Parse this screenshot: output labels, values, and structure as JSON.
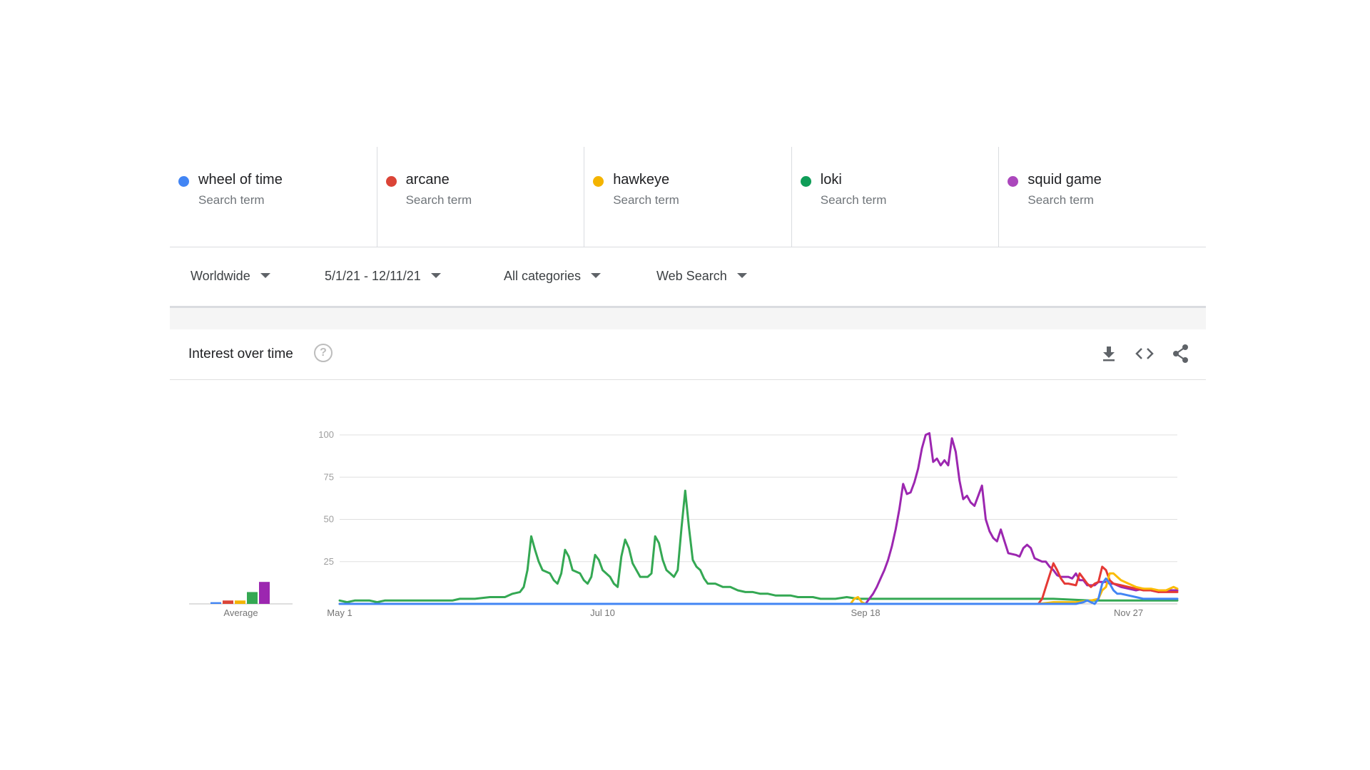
{
  "terms": [
    {
      "label": "wheel of time",
      "sub": "Search term",
      "color": "#4285f4"
    },
    {
      "label": "arcane",
      "sub": "Search term",
      "color": "#db4437"
    },
    {
      "label": "hawkeye",
      "sub": "Search term",
      "color": "#f4b400"
    },
    {
      "label": "loki",
      "sub": "Search term",
      "color": "#0f9d58"
    },
    {
      "label": "squid game",
      "sub": "Search term",
      "color": "#ab47bc"
    }
  ],
  "filters": {
    "region": "Worldwide",
    "date_range": "5/1/21 - 12/11/21",
    "category": "All categories",
    "search_type": "Web Search"
  },
  "card": {
    "title": "Interest over time",
    "help_glyph": "?",
    "icons": [
      "download-icon",
      "embed-code-icon",
      "share-icon"
    ]
  },
  "chart_data": {
    "type": "line",
    "xlabel": "",
    "ylabel": "",
    "ylim": [
      0,
      100
    ],
    "y_ticks": [
      "100",
      "75",
      "50",
      "25"
    ],
    "x_tick_labels": [
      "May 1",
      "Jul 10",
      "Sep 18",
      "Nov 27"
    ],
    "x_tick_days": [
      0,
      70,
      140,
      210
    ],
    "total_days": 224,
    "grid": true,
    "average_label": "Average",
    "averages": [
      {
        "name": "wheel of time",
        "value": 1,
        "color": "#4285f4"
      },
      {
        "name": "arcane",
        "value": 2,
        "color": "#db4437"
      },
      {
        "name": "hawkeye",
        "value": 2,
        "color": "#f4b400"
      },
      {
        "name": "loki",
        "value": 7,
        "color": "#34a853"
      },
      {
        "name": "squid game",
        "value": 13,
        "color": "#9c27b0"
      }
    ],
    "series": [
      {
        "name": "loki",
        "color": "#34a853",
        "points": [
          [
            0,
            2
          ],
          [
            2,
            1
          ],
          [
            4,
            2
          ],
          [
            8,
            2
          ],
          [
            10,
            1
          ],
          [
            12,
            2
          ],
          [
            30,
            2
          ],
          [
            32,
            3
          ],
          [
            36,
            3
          ],
          [
            40,
            4
          ],
          [
            42,
            4
          ],
          [
            44,
            4
          ],
          [
            46,
            6
          ],
          [
            48,
            7
          ],
          [
            49,
            10
          ],
          [
            50,
            20
          ],
          [
            51,
            40
          ],
          [
            52,
            32
          ],
          [
            53,
            25
          ],
          [
            54,
            20
          ],
          [
            56,
            18
          ],
          [
            57,
            14
          ],
          [
            58,
            12
          ],
          [
            59,
            18
          ],
          [
            60,
            32
          ],
          [
            61,
            28
          ],
          [
            62,
            20
          ],
          [
            64,
            18
          ],
          [
            65,
            14
          ],
          [
            66,
            12
          ],
          [
            67,
            16
          ],
          [
            68,
            29
          ],
          [
            69,
            26
          ],
          [
            70,
            20
          ],
          [
            72,
            16
          ],
          [
            73,
            12
          ],
          [
            74,
            10
          ],
          [
            75,
            28
          ],
          [
            76,
            38
          ],
          [
            77,
            33
          ],
          [
            78,
            24
          ],
          [
            79,
            20
          ],
          [
            80,
            16
          ],
          [
            82,
            16
          ],
          [
            83,
            18
          ],
          [
            84,
            40
          ],
          [
            85,
            36
          ],
          [
            86,
            26
          ],
          [
            87,
            20
          ],
          [
            88,
            18
          ],
          [
            89,
            16
          ],
          [
            90,
            20
          ],
          [
            91,
            45
          ],
          [
            92,
            67
          ],
          [
            93,
            45
          ],
          [
            94,
            26
          ],
          [
            95,
            22
          ],
          [
            96,
            20
          ],
          [
            97,
            15
          ],
          [
            98,
            12
          ],
          [
            100,
            12
          ],
          [
            102,
            10
          ],
          [
            104,
            10
          ],
          [
            106,
            8
          ],
          [
            108,
            7
          ],
          [
            110,
            7
          ],
          [
            112,
            6
          ],
          [
            114,
            6
          ],
          [
            116,
            5
          ],
          [
            120,
            5
          ],
          [
            122,
            4
          ],
          [
            126,
            4
          ],
          [
            128,
            3
          ],
          [
            132,
            3
          ],
          [
            135,
            4
          ],
          [
            138,
            3
          ],
          [
            140,
            3
          ],
          [
            145,
            3
          ],
          [
            150,
            3
          ],
          [
            160,
            3
          ],
          [
            170,
            3
          ],
          [
            180,
            3
          ],
          [
            190,
            3
          ],
          [
            200,
            2
          ],
          [
            205,
            2
          ],
          [
            210,
            2
          ],
          [
            215,
            2
          ],
          [
            220,
            2
          ],
          [
            223,
            2
          ]
        ]
      },
      {
        "name": "squid game",
        "color": "#9c27b0",
        "points": [
          [
            0,
            0
          ],
          [
            140,
            0
          ],
          [
            141,
            3
          ],
          [
            142,
            6
          ],
          [
            143,
            10
          ],
          [
            144,
            15
          ],
          [
            145,
            20
          ],
          [
            146,
            26
          ],
          [
            147,
            34
          ],
          [
            148,
            44
          ],
          [
            149,
            56
          ],
          [
            150,
            71
          ],
          [
            151,
            65
          ],
          [
            152,
            66
          ],
          [
            153,
            72
          ],
          [
            154,
            80
          ],
          [
            155,
            92
          ],
          [
            156,
            100
          ],
          [
            157,
            101
          ],
          [
            158,
            84
          ],
          [
            159,
            86
          ],
          [
            160,
            82
          ],
          [
            161,
            85
          ],
          [
            162,
            82
          ],
          [
            163,
            98
          ],
          [
            164,
            90
          ],
          [
            165,
            73
          ],
          [
            166,
            62
          ],
          [
            167,
            64
          ],
          [
            168,
            60
          ],
          [
            169,
            58
          ],
          [
            170,
            64
          ],
          [
            171,
            70
          ],
          [
            172,
            50
          ],
          [
            173,
            43
          ],
          [
            174,
            39
          ],
          [
            175,
            37
          ],
          [
            176,
            44
          ],
          [
            177,
            37
          ],
          [
            178,
            30
          ],
          [
            180,
            29
          ],
          [
            181,
            28
          ],
          [
            182,
            33
          ],
          [
            183,
            35
          ],
          [
            184,
            33
          ],
          [
            185,
            27
          ],
          [
            186,
            26
          ],
          [
            187,
            25
          ],
          [
            188,
            25
          ],
          [
            189,
            22
          ],
          [
            190,
            20
          ],
          [
            191,
            17
          ],
          [
            192,
            16
          ],
          [
            194,
            16
          ],
          [
            195,
            15
          ],
          [
            196,
            18
          ],
          [
            197,
            14
          ],
          [
            198,
            14
          ],
          [
            199,
            11
          ],
          [
            201,
            11
          ],
          [
            202,
            13
          ],
          [
            204,
            13
          ],
          [
            205,
            12
          ],
          [
            206,
            12
          ],
          [
            208,
            10
          ],
          [
            210,
            9
          ],
          [
            212,
            8
          ],
          [
            214,
            9
          ],
          [
            216,
            8
          ],
          [
            218,
            7
          ],
          [
            220,
            8
          ],
          [
            223,
            8
          ]
        ]
      },
      {
        "name": "arcane",
        "color": "#e53935",
        "points": [
          [
            0,
            0
          ],
          [
            186,
            0
          ],
          [
            187,
            3
          ],
          [
            188,
            10
          ],
          [
            189,
            17
          ],
          [
            190,
            24
          ],
          [
            191,
            20
          ],
          [
            192,
            15
          ],
          [
            193,
            12
          ],
          [
            194,
            12
          ],
          [
            196,
            11
          ],
          [
            197,
            18
          ],
          [
            198,
            15
          ],
          [
            199,
            12
          ],
          [
            200,
            10
          ],
          [
            201,
            12
          ],
          [
            202,
            13
          ],
          [
            203,
            22
          ],
          [
            204,
            20
          ],
          [
            205,
            14
          ],
          [
            206,
            12
          ],
          [
            208,
            11
          ],
          [
            210,
            10
          ],
          [
            212,
            9
          ],
          [
            214,
            8
          ],
          [
            216,
            8
          ],
          [
            218,
            7
          ],
          [
            220,
            7
          ],
          [
            223,
            7
          ]
        ]
      },
      {
        "name": "hawkeye",
        "color": "#fbbc04",
        "points": [
          [
            0,
            0
          ],
          [
            136,
            0
          ],
          [
            137,
            3
          ],
          [
            138,
            4
          ],
          [
            139,
            1
          ],
          [
            140,
            0
          ],
          [
            186,
            0
          ],
          [
            190,
            1
          ],
          [
            196,
            1
          ],
          [
            200,
            2
          ],
          [
            202,
            3
          ],
          [
            203,
            8
          ],
          [
            204,
            10
          ],
          [
            205,
            18
          ],
          [
            206,
            18
          ],
          [
            207,
            16
          ],
          [
            208,
            14
          ],
          [
            210,
            12
          ],
          [
            212,
            10
          ],
          [
            214,
            9
          ],
          [
            216,
            9
          ],
          [
            218,
            8
          ],
          [
            220,
            8
          ],
          [
            222,
            10
          ],
          [
            223,
            9
          ]
        ]
      },
      {
        "name": "wheel of time",
        "color": "#4285f4",
        "points": [
          [
            0,
            0
          ],
          [
            196,
            0
          ],
          [
            198,
            1
          ],
          [
            199,
            2
          ],
          [
            200,
            1
          ],
          [
            201,
            0
          ],
          [
            202,
            3
          ],
          [
            203,
            12
          ],
          [
            204,
            15
          ],
          [
            205,
            12
          ],
          [
            206,
            8
          ],
          [
            207,
            6
          ],
          [
            208,
            6
          ],
          [
            210,
            5
          ],
          [
            212,
            4
          ],
          [
            214,
            3
          ],
          [
            216,
            3
          ],
          [
            218,
            3
          ],
          [
            220,
            3
          ],
          [
            223,
            3
          ]
        ]
      }
    ]
  }
}
